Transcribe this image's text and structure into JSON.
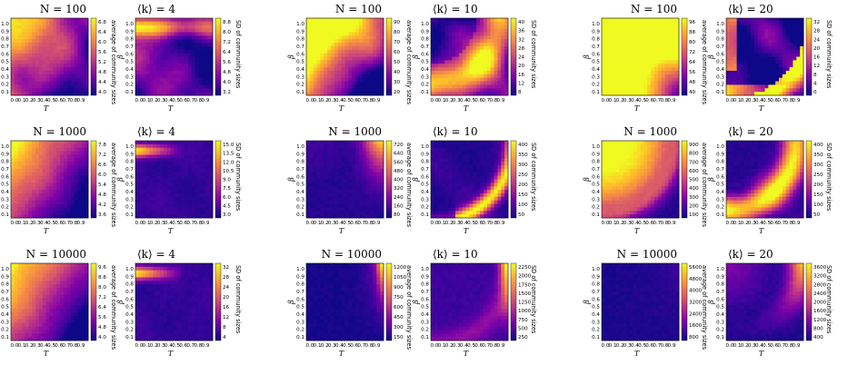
{
  "chart_data": {
    "type": "heatmap",
    "colormap": "plasma",
    "x_axis": {
      "label": "T",
      "tick_labels": [
        "0.0",
        "0.1",
        "0.2",
        "0.3",
        "0.4",
        "0.5",
        "0.6",
        "0.7",
        "0.8",
        "0.9"
      ]
    },
    "y_axis": {
      "label": "β",
      "tick_labels": [
        "0.1",
        "0.2",
        "0.3",
        "0.4",
        "0.5",
        "0.6",
        "0.7",
        "0.8",
        "0.9",
        "1.0"
      ]
    },
    "panels": [
      {
        "title": "N = 100",
        "colorbar_label": "average of community sizes",
        "colorbar_ticks": [
          "6.8",
          "6.4",
          "6.0",
          "5.6",
          "5.2",
          "4.8",
          "4.4",
          "4.0"
        ],
        "value_range": [
          3.9,
          6.9
        ],
        "pattern": "hot_top_left_patchy"
      },
      {
        "title": "⟨k⟩ = 4",
        "colorbar_label": "SD of community sizes",
        "colorbar_ticks": [
          "8.8",
          "8.0",
          "7.2",
          "6.4",
          "5.6",
          "4.8",
          "4.0",
          "3.2"
        ],
        "value_range": [
          2.9,
          9.0
        ],
        "pattern": "top_band_patchy"
      },
      {
        "title": "N = 100",
        "colorbar_label": "average of community sizes",
        "colorbar_ticks": [
          "90",
          "80",
          "70",
          "60",
          "50",
          "40",
          "30",
          "20"
        ],
        "value_range": [
          15,
          97
        ],
        "pattern": "hot_top_left_patchy_big"
      },
      {
        "title": "⟨k⟩ = 10",
        "colorbar_label": "SD of community sizes",
        "colorbar_ticks": [
          "40",
          "36",
          "32",
          "28",
          "24",
          "20",
          "16",
          "12",
          "8"
        ],
        "value_range": [
          6,
          41
        ],
        "pattern": "arc_band_patchy"
      },
      {
        "title": "N = 100",
        "colorbar_label": "average of community sizes",
        "colorbar_ticks": [
          "96",
          "88",
          "80",
          "72",
          "64",
          "56",
          "48",
          "40"
        ],
        "value_range": [
          36,
          98
        ],
        "pattern": "mostly_hot"
      },
      {
        "title": "⟨k⟩ = 20",
        "colorbar_label": "SD of community sizes",
        "colorbar_ticks": [
          "32",
          "28",
          "24",
          "20",
          "16",
          "12",
          "8",
          "4",
          "0"
        ],
        "value_range": [
          0,
          34
        ],
        "pattern": "outer_band_patchy"
      },
      {
        "title": "N = 1000",
        "colorbar_label": "average of community sizes",
        "colorbar_ticks": [
          "7.8",
          "7.2",
          "6.6",
          "6.0",
          "5.4",
          "4.8",
          "4.2",
          "3.6"
        ],
        "value_range": [
          3.4,
          8.0
        ],
        "pattern": "hot_top_left"
      },
      {
        "title": "⟨k⟩ = 4",
        "colorbar_label": "SD of community sizes",
        "colorbar_ticks": [
          "15.0",
          "13.5",
          "12.0",
          "10.5",
          "9.0",
          "7.5",
          "6.0",
          "4.5",
          "3.0"
        ],
        "value_range": [
          2.5,
          15.5
        ],
        "pattern": "top_band"
      },
      {
        "title": "N = 1000",
        "colorbar_label": "average of community sizes",
        "colorbar_ticks": [
          "720",
          "640",
          "560",
          "480",
          "400",
          "320",
          "240",
          "160",
          "80"
        ],
        "value_range": [
          40,
          740
        ],
        "pattern": "top_right_hot"
      },
      {
        "title": "⟨k⟩ = 10",
        "colorbar_label": "SD of community sizes",
        "colorbar_ticks": [
          "400",
          "350",
          "300",
          "250",
          "200",
          "150",
          "100",
          "50"
        ],
        "value_range": [
          20,
          410
        ],
        "pattern": "arc_band"
      },
      {
        "title": "N = 1000",
        "colorbar_label": "average of community sizes",
        "colorbar_ticks": [
          "900",
          "800",
          "700",
          "600",
          "500",
          "400",
          "300",
          "200",
          "100"
        ],
        "value_range": [
          50,
          950
        ],
        "pattern": "hot_top_left_big"
      },
      {
        "title": "⟨k⟩ = 20",
        "colorbar_label": "SD of community sizes",
        "colorbar_ticks": [
          "400",
          "350",
          "300",
          "250",
          "200",
          "150",
          "100",
          "50"
        ],
        "value_range": [
          20,
          420
        ],
        "pattern": "arc_band_wide"
      },
      {
        "title": "N = 10000",
        "colorbar_label": "average of community sizes",
        "colorbar_ticks": [
          "9.6",
          "8.8",
          "8.0",
          "7.2",
          "6.4",
          "5.6",
          "4.8",
          "4.0"
        ],
        "value_range": [
          3.6,
          10.0
        ],
        "pattern": "hot_top_left"
      },
      {
        "title": "⟨k⟩ = 4",
        "colorbar_label": "SD of community sizes",
        "colorbar_ticks": [
          "32",
          "28",
          "24",
          "20",
          "16",
          "12",
          "8",
          "4"
        ],
        "value_range": [
          2,
          34
        ],
        "pattern": "top_band"
      },
      {
        "title": "N = 10000",
        "colorbar_label": "average of community sizes",
        "colorbar_ticks": [
          "1200",
          "1050",
          "900",
          "750",
          "600",
          "450",
          "300",
          "150"
        ],
        "value_range": [
          60,
          1300
        ],
        "pattern": "right_edge_top"
      },
      {
        "title": "⟨k⟩ = 10",
        "colorbar_label": "SD of community sizes",
        "colorbar_ticks": [
          "2250",
          "2000",
          "1750",
          "1500",
          "1250",
          "1000",
          "750",
          "500",
          "250"
        ],
        "value_range": [
          150,
          2350
        ],
        "pattern": "right_edge_band"
      },
      {
        "title": "N = 10000",
        "colorbar_label": "average of community sizes",
        "colorbar_ticks": [
          "5600",
          "4800",
          "4000",
          "3200",
          "2400",
          "1600",
          "800"
        ],
        "value_range": [
          200,
          6000
        ],
        "pattern": "all_dark"
      },
      {
        "title": "⟨k⟩ = 20",
        "colorbar_label": "SD of community sizes",
        "colorbar_ticks": [
          "3600",
          "3200",
          "2800",
          "2400",
          "2000",
          "1600",
          "1200",
          "800",
          "400"
        ],
        "value_range": [
          200,
          3800
        ],
        "pattern": "top_right_band"
      }
    ]
  }
}
